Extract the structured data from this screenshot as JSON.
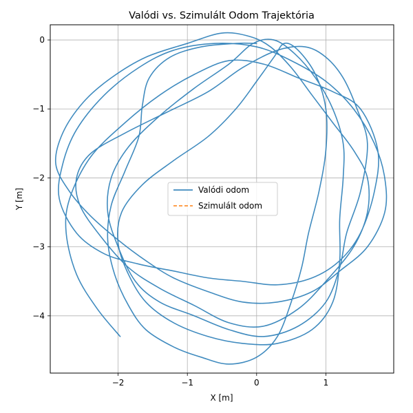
{
  "chart_data": {
    "type": "line",
    "title": "Valódi vs. Szimulált Odom Trajektória",
    "xlabel": "X [m]",
    "ylabel": "Y [m]",
    "xlim": [
      -2.98,
      1.98
    ],
    "ylim": [
      -4.83,
      0.22
    ],
    "xticks": [
      -2,
      -1,
      0,
      1
    ],
    "yticks": [
      0,
      -1,
      -2,
      -3,
      -4
    ],
    "xtick_labels": [
      "−2",
      "−1",
      "0",
      "1"
    ],
    "ytick_labels": [
      "0",
      "−1",
      "−2",
      "−3",
      "−4"
    ],
    "grid": true,
    "legend_position": "center",
    "series": [
      {
        "name": "Valódi odom",
        "color": "#1f77b4",
        "style": "solid",
        "points": [
          [
            -1.97,
            -4.3
          ],
          [
            -2.3,
            -3.9
          ],
          [
            -2.6,
            -3.4
          ],
          [
            -2.75,
            -2.8
          ],
          [
            -2.7,
            -2.3
          ],
          [
            -2.4,
            -1.7
          ],
          [
            -1.9,
            -1.2
          ],
          [
            -1.4,
            -0.8
          ],
          [
            -0.9,
            -0.5
          ],
          [
            -0.4,
            -0.3
          ],
          [
            0.1,
            -0.35
          ],
          [
            0.6,
            -0.55
          ],
          [
            1.1,
            -0.75
          ],
          [
            1.5,
            -1.0
          ],
          [
            1.75,
            -1.6
          ],
          [
            1.7,
            -2.2
          ],
          [
            1.5,
            -2.8
          ],
          [
            1.2,
            -3.2
          ],
          [
            0.8,
            -3.45
          ],
          [
            0.3,
            -3.55
          ],
          [
            -0.2,
            -3.5
          ],
          [
            -0.7,
            -3.45
          ],
          [
            -1.2,
            -3.35
          ],
          [
            -1.7,
            -3.25
          ],
          [
            -2.2,
            -3.1
          ],
          [
            -2.6,
            -2.8
          ],
          [
            -2.85,
            -2.3
          ],
          [
            -2.8,
            -1.8
          ],
          [
            -2.6,
            -1.3
          ],
          [
            -2.2,
            -0.8
          ],
          [
            -1.7,
            -0.4
          ],
          [
            -1.2,
            -0.15
          ],
          [
            -0.6,
            -0.05
          ],
          [
            0.0,
            -0.1
          ],
          [
            0.5,
            -0.3
          ],
          [
            1.0,
            -0.6
          ],
          [
            1.4,
            -1.0
          ],
          [
            1.7,
            -1.5
          ],
          [
            1.85,
            -2.0
          ],
          [
            1.85,
            -2.5
          ],
          [
            1.6,
            -3.0
          ],
          [
            1.2,
            -3.35
          ],
          [
            0.8,
            -3.65
          ],
          [
            0.3,
            -3.8
          ],
          [
            -0.2,
            -3.8
          ],
          [
            -0.7,
            -3.65
          ],
          [
            -1.2,
            -3.45
          ],
          [
            -1.6,
            -3.2
          ],
          [
            -2.0,
            -2.9
          ],
          [
            -2.4,
            -2.55
          ],
          [
            -2.7,
            -2.2
          ],
          [
            -2.9,
            -1.8
          ],
          [
            -2.8,
            -1.35
          ],
          [
            -2.5,
            -0.9
          ],
          [
            -2.1,
            -0.55
          ],
          [
            -1.6,
            -0.25
          ],
          [
            -1.0,
            -0.05
          ],
          [
            -0.5,
            0.1
          ],
          [
            -0.1,
            0.05
          ],
          [
            0.2,
            -0.1
          ],
          [
            0.5,
            -0.4
          ],
          [
            0.8,
            -0.8
          ],
          [
            1.1,
            -1.2
          ],
          [
            1.4,
            -1.6
          ],
          [
            1.6,
            -2.0
          ],
          [
            1.6,
            -2.5
          ],
          [
            1.4,
            -3.0
          ],
          [
            1.0,
            -3.5
          ],
          [
            0.6,
            -3.9
          ],
          [
            0.1,
            -4.15
          ],
          [
            -0.4,
            -4.1
          ],
          [
            -0.9,
            -3.85
          ],
          [
            -1.4,
            -3.6
          ],
          [
            -1.85,
            -3.3
          ],
          [
            -2.25,
            -2.85
          ],
          [
            -2.55,
            -2.4
          ],
          [
            -2.6,
            -2.0
          ],
          [
            -2.4,
            -1.65
          ],
          [
            -1.9,
            -1.35
          ],
          [
            -1.3,
            -1.05
          ],
          [
            -0.7,
            -0.75
          ],
          [
            -0.2,
            -0.4
          ],
          [
            0.3,
            -0.15
          ],
          [
            0.7,
            -0.1
          ],
          [
            1.0,
            -0.25
          ],
          [
            1.25,
            -0.55
          ],
          [
            1.45,
            -1.0
          ],
          [
            1.6,
            -1.5
          ],
          [
            1.5,
            -2.2
          ],
          [
            1.3,
            -2.8
          ],
          [
            1.2,
            -3.3
          ],
          [
            1.0,
            -3.8
          ],
          [
            0.6,
            -4.15
          ],
          [
            0.1,
            -4.3
          ],
          [
            -0.4,
            -4.2
          ],
          [
            -0.9,
            -4.0
          ],
          [
            -1.4,
            -3.8
          ],
          [
            -1.75,
            -3.5
          ],
          [
            -2.0,
            -3.0
          ],
          [
            -2.15,
            -2.5
          ],
          [
            -2.1,
            -2.0
          ],
          [
            -1.85,
            -1.55
          ],
          [
            -1.4,
            -1.1
          ],
          [
            -0.9,
            -0.7
          ],
          [
            -0.4,
            -0.35
          ],
          [
            -0.05,
            -0.05
          ],
          [
            0.25,
            0.0
          ],
          [
            0.55,
            -0.2
          ],
          [
            0.85,
            -0.55
          ],
          [
            1.1,
            -1.0
          ],
          [
            1.25,
            -1.5
          ],
          [
            1.25,
            -2.0
          ],
          [
            1.2,
            -2.6
          ],
          [
            1.2,
            -3.2
          ],
          [
            1.1,
            -3.8
          ],
          [
            0.8,
            -4.2
          ],
          [
            0.3,
            -4.4
          ],
          [
            -0.2,
            -4.4
          ],
          [
            -0.7,
            -4.3
          ],
          [
            -1.2,
            -4.1
          ],
          [
            -1.6,
            -3.8
          ],
          [
            -1.85,
            -3.4
          ],
          [
            -2.0,
            -2.95
          ],
          [
            -1.95,
            -2.5
          ],
          [
            -1.65,
            -2.1
          ],
          [
            -1.2,
            -1.75
          ],
          [
            -0.7,
            -1.4
          ],
          [
            -0.3,
            -1.0
          ],
          [
            0.0,
            -0.6
          ],
          [
            0.25,
            -0.25
          ],
          [
            0.4,
            -0.05
          ],
          [
            0.6,
            -0.15
          ],
          [
            0.85,
            -0.5
          ],
          [
            1.0,
            -1.0
          ],
          [
            1.0,
            -1.6
          ],
          [
            0.9,
            -2.2
          ],
          [
            0.75,
            -2.8
          ],
          [
            0.65,
            -3.3
          ],
          [
            0.5,
            -3.8
          ],
          [
            0.3,
            -4.3
          ],
          [
            0.0,
            -4.6
          ],
          [
            -0.4,
            -4.7
          ],
          [
            -0.8,
            -4.6
          ],
          [
            -1.2,
            -4.45
          ],
          [
            -1.6,
            -4.2
          ],
          [
            -1.85,
            -3.85
          ],
          [
            -2.05,
            -3.4
          ],
          [
            -2.15,
            -2.9
          ],
          [
            -2.1,
            -2.4
          ],
          [
            -1.9,
            -1.9
          ],
          [
            -1.7,
            -1.4
          ],
          [
            -1.65,
            -0.95
          ],
          [
            -1.55,
            -0.55
          ],
          [
            -1.25,
            -0.25
          ],
          [
            -0.8,
            -0.1
          ],
          [
            -0.3,
            -0.05
          ],
          [
            0.0,
            -0.05
          ]
        ]
      },
      {
        "name": "Szimulált odom",
        "color": "#ff7f0e",
        "style": "dashed",
        "points": []
      }
    ]
  }
}
